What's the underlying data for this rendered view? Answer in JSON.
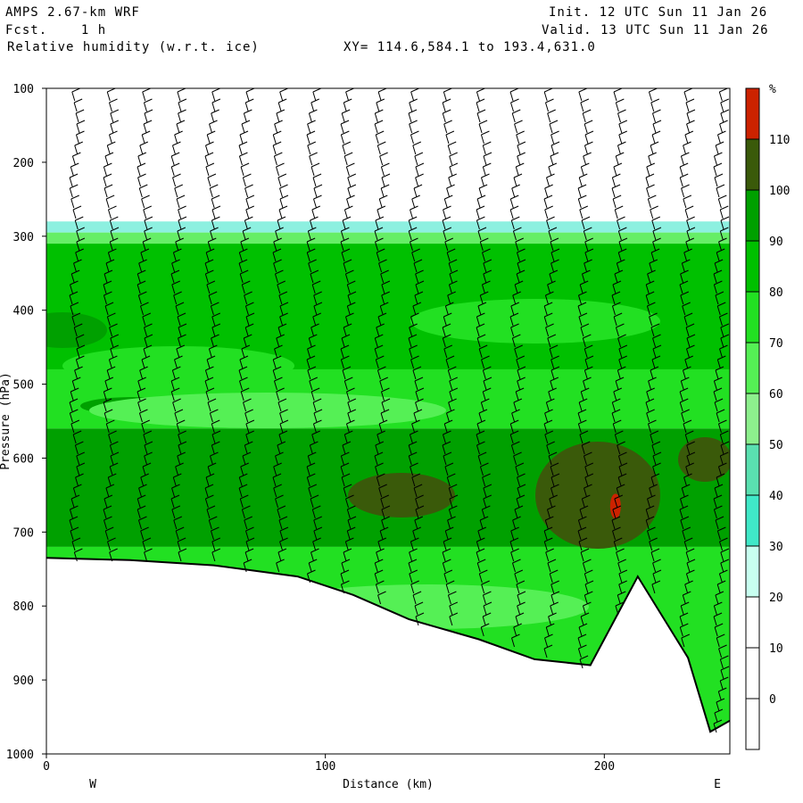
{
  "header": {
    "model": "AMPS 2.67-km WRF",
    "fcst": "Fcst.    1 h",
    "field": "Relative humidity (w.r.t. ice)",
    "xy": "XY= 114.6,584.1 to 193.4,631.0",
    "init": "Init. 12 UTC Sun 11 Jan 26",
    "valid": "Valid. 13 UTC Sun 11 Jan 26"
  },
  "chart_data": {
    "type": "heatmap",
    "xlabel": "Distance (km)",
    "ylabel": "Pressure (hPa)",
    "xlim": [
      0,
      245
    ],
    "ylim": [
      1000,
      100
    ],
    "xticks": [
      "0",
      "100",
      "200"
    ],
    "yticks": [
      "100",
      "200",
      "300",
      "400",
      "500",
      "600",
      "700",
      "800",
      "900",
      "1000"
    ],
    "west_label": "W",
    "east_label": "E",
    "colorbar": {
      "unit": "%",
      "levels": [
        "110",
        "100",
        "90",
        "80",
        "70",
        "60",
        "50",
        "40",
        "30",
        "20",
        "10",
        "0"
      ],
      "colors": [
        "#cc2200",
        "#3a5a0a",
        "#00a000",
        "#00c000",
        "#22e022",
        "#55f055",
        "#8df08d",
        "#5ae0b0",
        "#40e8c8",
        "#c8fff0",
        "#ffffff",
        "#ffffff",
        "#ffffff"
      ]
    },
    "humidity_bands": [
      {
        "p_top": 280,
        "p_bot": 295,
        "rh": "40-50",
        "color": "#8df0e0"
      },
      {
        "p_top": 295,
        "p_bot": 310,
        "rh": "60-70",
        "color": "#66ee66"
      },
      {
        "p_top": 310,
        "p_bot": 480,
        "rh": "80-90",
        "color": "#00c000"
      },
      {
        "p_top": 480,
        "p_bot": 560,
        "rh": "70-80",
        "color": "#22e022"
      },
      {
        "p_top": 560,
        "p_bot": 720,
        "rh": "90-100",
        "color": "#00a000"
      }
    ],
    "max_region": {
      "x_km": 204,
      "p_hpa": 665,
      "rh": "110+"
    },
    "terrain_hpa": [
      {
        "x": 0,
        "p": 735
      },
      {
        "x": 30,
        "p": 738
      },
      {
        "x": 60,
        "p": 745
      },
      {
        "x": 90,
        "p": 760
      },
      {
        "x": 110,
        "p": 785
      },
      {
        "x": 130,
        "p": 818
      },
      {
        "x": 155,
        "p": 845
      },
      {
        "x": 175,
        "p": 872
      },
      {
        "x": 195,
        "p": 880
      },
      {
        "x": 212,
        "p": 760
      },
      {
        "x": 230,
        "p": 870
      },
      {
        "x": 238,
        "p": 970
      },
      {
        "x": 245,
        "p": 955
      }
    ]
  }
}
